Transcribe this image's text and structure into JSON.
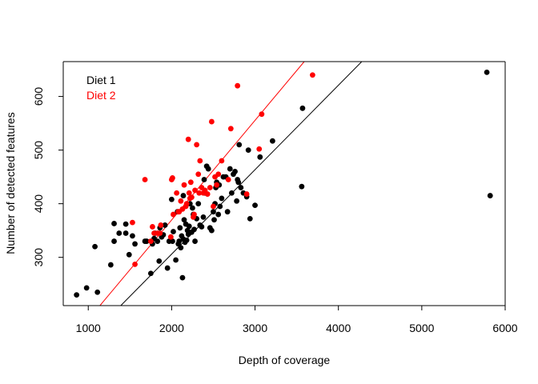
{
  "chart_data": {
    "type": "scatter",
    "title": "",
    "xlabel": "Depth of coverage",
    "ylabel": "Number of detected features",
    "xlim": [
      700,
      6000
    ],
    "ylim": [
      210,
      665
    ],
    "x_ticks": [
      1000,
      2000,
      3000,
      4000,
      5000,
      6000
    ],
    "y_ticks": [
      300,
      400,
      500,
      600
    ],
    "grid": false,
    "legend_position": "top-left",
    "series": [
      {
        "name": "Diet 1",
        "color": "#000000",
        "points": [
          [
            860,
            230
          ],
          [
            980,
            243
          ],
          [
            1080,
            320
          ],
          [
            1110,
            235
          ],
          [
            1270,
            286
          ],
          [
            1310,
            330
          ],
          [
            1310,
            363
          ],
          [
            1370,
            345
          ],
          [
            1450,
            362
          ],
          [
            1450,
            345
          ],
          [
            1490,
            305
          ],
          [
            1530,
            340
          ],
          [
            1560,
            325
          ],
          [
            1680,
            330
          ],
          [
            1700,
            330
          ],
          [
            1750,
            270
          ],
          [
            1770,
            325
          ],
          [
            1790,
            335
          ],
          [
            1800,
            345
          ],
          [
            1830,
            330
          ],
          [
            1850,
            293
          ],
          [
            1860,
            355
          ],
          [
            1880,
            338
          ],
          [
            1900,
            342
          ],
          [
            1920,
            360
          ],
          [
            1950,
            280
          ],
          [
            1970,
            330
          ],
          [
            2000,
            408
          ],
          [
            2010,
            330
          ],
          [
            2020,
            348
          ],
          [
            2050,
            295
          ],
          [
            2070,
            385
          ],
          [
            2080,
            325
          ],
          [
            2090,
            330
          ],
          [
            2100,
            355
          ],
          [
            2110,
            318
          ],
          [
            2120,
            340
          ],
          [
            2130,
            262
          ],
          [
            2140,
            334
          ],
          [
            2140,
            415
          ],
          [
            2150,
            370
          ],
          [
            2160,
            328
          ],
          [
            2170,
            362
          ],
          [
            2180,
            332
          ],
          [
            2190,
            350
          ],
          [
            2200,
            343
          ],
          [
            2210,
            358
          ],
          [
            2220,
            400
          ],
          [
            2240,
            347
          ],
          [
            2250,
            392
          ],
          [
            2260,
            380
          ],
          [
            2270,
            352
          ],
          [
            2280,
            330
          ],
          [
            2300,
            372
          ],
          [
            2320,
            400
          ],
          [
            2340,
            360
          ],
          [
            2360,
            357
          ],
          [
            2380,
            375
          ],
          [
            2390,
            445
          ],
          [
            2400,
            420
          ],
          [
            2420,
            470
          ],
          [
            2440,
            465
          ],
          [
            2460,
            355
          ],
          [
            2480,
            350
          ],
          [
            2500,
            385
          ],
          [
            2510,
            370
          ],
          [
            2520,
            400
          ],
          [
            2530,
            430
          ],
          [
            2540,
            440
          ],
          [
            2560,
            380
          ],
          [
            2570,
            435
          ],
          [
            2580,
            395
          ],
          [
            2600,
            410
          ],
          [
            2620,
            450
          ],
          [
            2650,
            450
          ],
          [
            2670,
            385
          ],
          [
            2700,
            465
          ],
          [
            2720,
            420
          ],
          [
            2740,
            455
          ],
          [
            2760,
            460
          ],
          [
            2780,
            405
          ],
          [
            2790,
            445
          ],
          [
            2800,
            440
          ],
          [
            2810,
            510
          ],
          [
            2830,
            430
          ],
          [
            2860,
            420
          ],
          [
            2900,
            413
          ],
          [
            2920,
            500
          ],
          [
            2940,
            372
          ],
          [
            3000,
            397
          ],
          [
            3060,
            487
          ],
          [
            3210,
            517
          ],
          [
            3560,
            432
          ],
          [
            3570,
            578
          ],
          [
            5780,
            645
          ],
          [
            5820,
            415
          ]
        ]
      },
      {
        "name": "Diet 2",
        "color": "#ff0000",
        "points": [
          [
            1530,
            365
          ],
          [
            1560,
            287
          ],
          [
            1680,
            445
          ],
          [
            1750,
            330
          ],
          [
            1770,
            357
          ],
          [
            1790,
            345
          ],
          [
            1830,
            345
          ],
          [
            1860,
            345
          ],
          [
            1870,
            360
          ],
          [
            1990,
            338
          ],
          [
            2000,
            445
          ],
          [
            2010,
            448
          ],
          [
            2020,
            380
          ],
          [
            2060,
            420
          ],
          [
            2080,
            385
          ],
          [
            2090,
            385
          ],
          [
            2110,
            405
          ],
          [
            2130,
            390
          ],
          [
            2150,
            435
          ],
          [
            2170,
            395
          ],
          [
            2180,
            400
          ],
          [
            2200,
            520
          ],
          [
            2210,
            420
          ],
          [
            2220,
            410
          ],
          [
            2230,
            440
          ],
          [
            2240,
            412
          ],
          [
            2260,
            375
          ],
          [
            2270,
            380
          ],
          [
            2280,
            425
          ],
          [
            2300,
            510
          ],
          [
            2320,
            455
          ],
          [
            2330,
            420
          ],
          [
            2340,
            480
          ],
          [
            2360,
            430
          ],
          [
            2380,
            420
          ],
          [
            2400,
            425
          ],
          [
            2430,
            418
          ],
          [
            2460,
            430
          ],
          [
            2480,
            553
          ],
          [
            2500,
            395
          ],
          [
            2520,
            450
          ],
          [
            2540,
            435
          ],
          [
            2560,
            455
          ],
          [
            2600,
            480
          ],
          [
            2680,
            445
          ],
          [
            2710,
            540
          ],
          [
            2790,
            620
          ],
          [
            2900,
            418
          ],
          [
            3050,
            502
          ],
          [
            3080,
            567
          ],
          [
            3690,
            640
          ]
        ]
      }
    ],
    "regression_lines": [
      {
        "series": "Diet 1",
        "color": "#000000",
        "points": [
          [
            1390,
            210
          ],
          [
            4280,
            665
          ]
        ]
      },
      {
        "series": "Diet 2",
        "color": "#ff0000",
        "points": [
          [
            1140,
            210
          ],
          [
            3590,
            665
          ]
        ]
      }
    ]
  }
}
